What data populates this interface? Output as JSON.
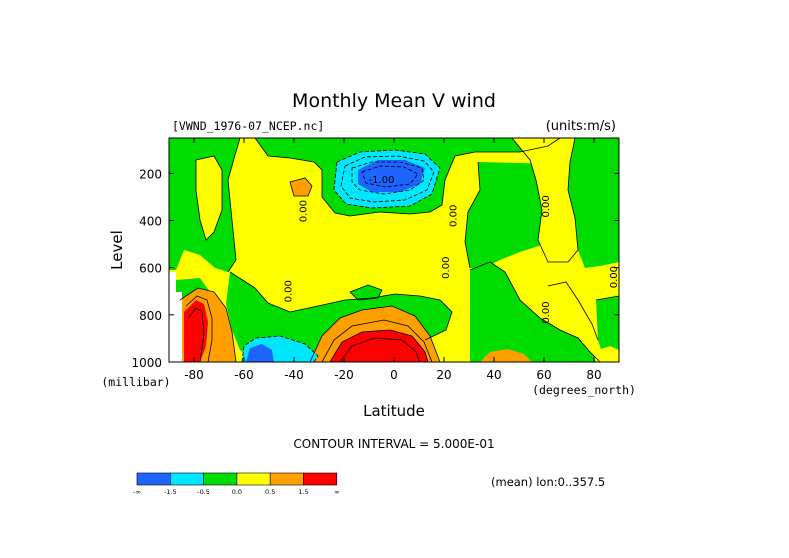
{
  "chart_data": {
    "type": "heatmap",
    "title": "Monthly Mean V wind",
    "dataset_label": "[VWND_1976-07_NCEP.nc]",
    "units_label": "(units:m/s)",
    "xlabel": "Latitude",
    "x_unit_label": "(degrees_north)",
    "ylabel": "Level",
    "y_unit_label": "(millibar)",
    "xlim": [
      -90,
      90
    ],
    "ylim": [
      1000,
      50
    ],
    "y_reversed": true,
    "x_ticks": [
      -80,
      -60,
      -40,
      -20,
      0,
      20,
      40,
      60,
      80
    ],
    "y_ticks": [
      200,
      400,
      600,
      800,
      1000
    ],
    "contour_interval_text": "CONTOUR INTERVAL = 5.000E-01",
    "averaging_text": "(mean) lon:0..357.5",
    "legend": {
      "placement": "bottom-left",
      "bins": [
        {
          "color": "#1e64ff",
          "range": "< -1.5"
        },
        {
          "color": "#00e6ff",
          "range": "-1.5 to -0.5"
        },
        {
          "color": "#00dc00",
          "range": "-0.5 to 0.0"
        },
        {
          "color": "#ffff00",
          "range": "0.0 to 0.5"
        },
        {
          "color": "#ffa000",
          "range": "0.5 to 1.5"
        },
        {
          "color": "#ff0000",
          "range": "> 1.5"
        }
      ],
      "tick_labels": [
        "-∞",
        "-1.5",
        "-0.5",
        "0.0",
        "0.5",
        "1.5",
        "∞"
      ]
    },
    "contour_labels": [
      {
        "text": "-1.00",
        "lat": -5,
        "level": 240
      },
      {
        "text": "0.00",
        "lat": -35,
        "level": 360
      },
      {
        "text": "0.00",
        "lat": -41,
        "level": 700
      },
      {
        "text": "0.00",
        "lat": 25,
        "level": 380
      },
      {
        "text": "0.00",
        "lat": 22,
        "level": 600
      },
      {
        "text": "0.00",
        "lat": 62,
        "level": 340
      },
      {
        "text": "0.00",
        "lat": 62,
        "level": 790
      },
      {
        "text": "0.00",
        "lat": 90,
        "level": 640
      }
    ],
    "features": [
      {
        "sign": "negative",
        "bin": "< -1.5",
        "lat_range": [
          -12,
          8
        ],
        "level_range": [
          100,
          220
        ],
        "description": "upper-level northerly jet core"
      },
      {
        "sign": "negative",
        "bin": "-1.5 to -0.5",
        "lat_range": [
          -22,
          14
        ],
        "level_range": [
          70,
          290
        ]
      },
      {
        "sign": "negative",
        "bin": "-1.5 to -0.5",
        "lat_range": [
          -60,
          -32
        ],
        "level_range": [
          870,
          1000
        ]
      },
      {
        "sign": "negative",
        "bin": "< -1.5",
        "lat_range": [
          -57,
          -49
        ],
        "level_range": [
          920,
          1000
        ]
      },
      {
        "sign": "positive",
        "bin": "> 1.5",
        "lat_range": [
          -20,
          15
        ],
        "level_range": [
          880,
          1000
        ],
        "description": "low-level cross-equatorial southerly flow"
      },
      {
        "sign": "positive",
        "bin": "0.5 to 1.5",
        "lat_range": [
          -26,
          20
        ],
        "level_range": [
          790,
          1000
        ]
      },
      {
        "sign": "positive",
        "bin": "> 1.5",
        "lat_range": [
          -86,
          -80
        ],
        "level_range": [
          820,
          1000
        ]
      },
      {
        "sign": "positive",
        "bin": "0.5 to 1.5",
        "lat_range": [
          -80,
          -74
        ],
        "level_range": [
          710,
          1000
        ]
      },
      {
        "sign": "positive",
        "bin": "0.5 to 1.5",
        "lat_range": [
          -42,
          -38
        ],
        "level_range": [
          200,
          270
        ]
      },
      {
        "sign": "positive",
        "bin": "0.5 to 1.5",
        "lat_range": [
          38,
          56
        ],
        "level_range": [
          960,
          1000
        ]
      }
    ]
  }
}
